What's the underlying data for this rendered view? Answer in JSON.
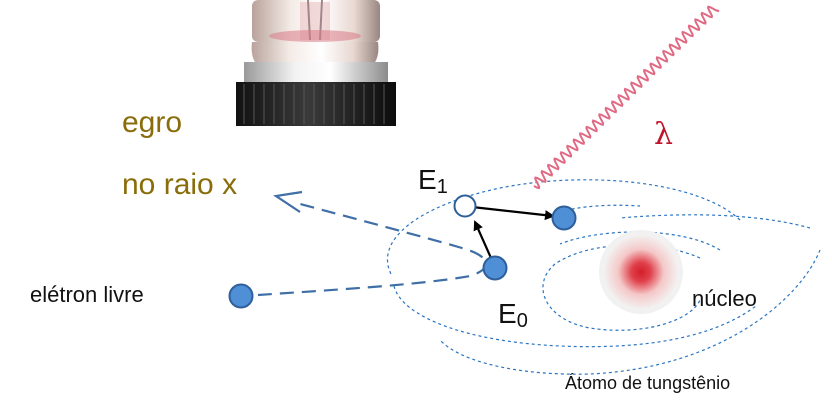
{
  "texts": {
    "line1": "egro",
    "line2": "no raio x",
    "free_electron": "elétron livre",
    "e1_base": "E",
    "e1_sub": "1",
    "e0_base": "E",
    "e0_sub": "0",
    "lambda": "λ",
    "nucleus": "núcleo",
    "atom": "Átomo de tungstênio"
  },
  "colors": {
    "olive_text": "#8a6d0b",
    "electron_fill": "#4f8fd6",
    "electron_stroke": "#2f5f9a",
    "dashed_path": "#3f6fa6",
    "orbit": "#2a74c2",
    "photon": "#e06a84",
    "lambda": "#c0142b",
    "nucleus": "#d21f2c",
    "arrow": "#000000"
  },
  "icons": {
    "lamp": "xray-tube-bulb-image"
  }
}
